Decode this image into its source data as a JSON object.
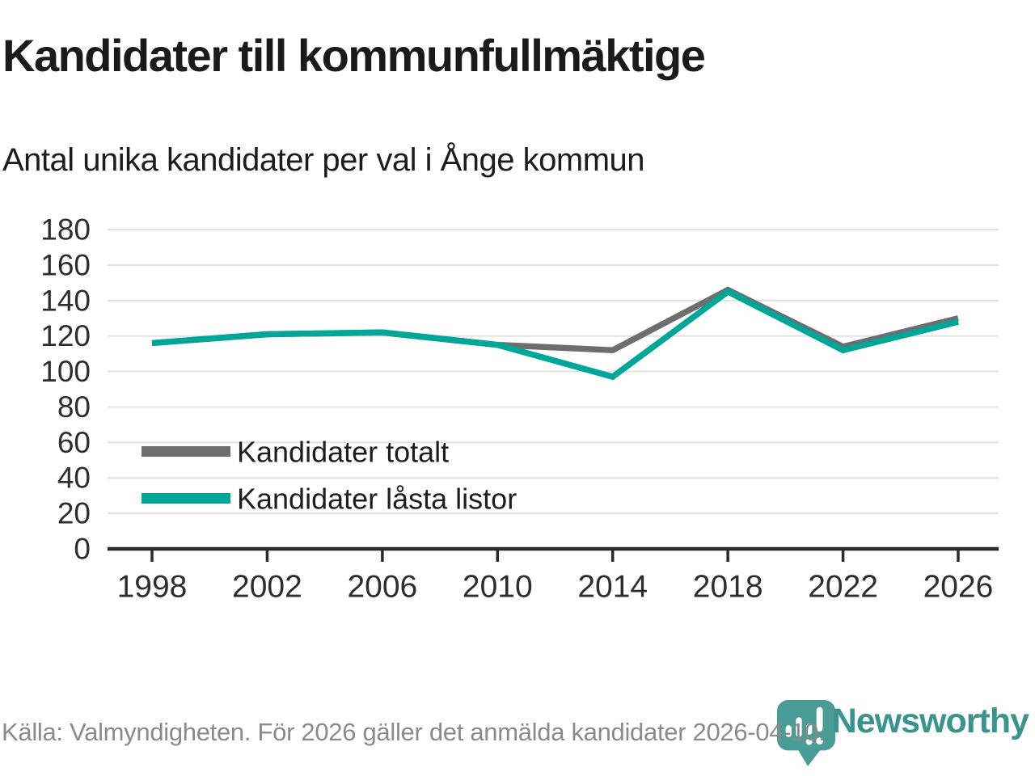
{
  "header": {
    "title": "Kandidater till kommunfullmäktige",
    "subtitle": "Antal unika kandidater per val i Ånge kommun"
  },
  "chart_data": {
    "type": "line",
    "categories": [
      "1998",
      "2002",
      "2006",
      "2010",
      "2014",
      "2018",
      "2022",
      "2026"
    ],
    "series": [
      {
        "name": "Kandidater totalt",
        "color": "#6e6e6e",
        "values": [
          116,
          121,
          122,
          115,
          112,
          146,
          114,
          130
        ]
      },
      {
        "name": "Kandidater låsta listor",
        "color": "#00a798",
        "values": [
          116,
          121,
          122,
          115,
          97,
          145,
          112,
          128
        ]
      }
    ],
    "ylim": [
      0,
      180
    ],
    "ytick_step": 20,
    "grid": "horizontal",
    "legend_position": "inside-left",
    "xlabel": "",
    "ylabel": ""
  },
  "footer": {
    "source": "Källa: Valmyndigheten. För 2026 gäller det anmälda kandidater 2026-04-10.",
    "logo_text": "Newsworthy"
  },
  "colors": {
    "series_total": "#6e6e6e",
    "series_locked": "#00a798",
    "grid": "#e3e3e3",
    "axis": "#2b2b2b",
    "tick_label": "#2d2d2d",
    "title_text": "#1a1a1a",
    "muted_text": "#8a8a8a",
    "logo_pin": "#4a9c96",
    "logo_text": "#39948d"
  }
}
